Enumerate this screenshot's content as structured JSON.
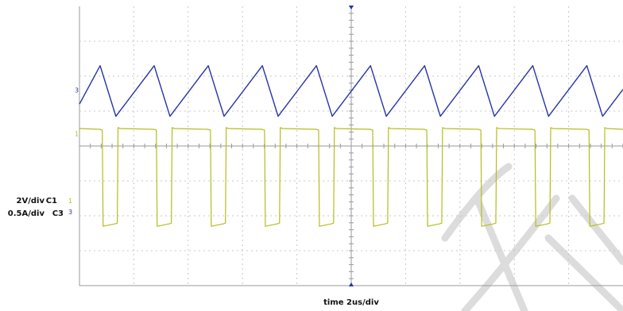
{
  "chart_data": {
    "type": "line",
    "instrument": "oscilloscope",
    "grid": "on",
    "divisions": {
      "horizontal": 10,
      "vertical": 8
    },
    "time_label": "time  2us/div",
    "channel_labels": [
      {
        "id": "C1",
        "text": "2V/div",
        "color": "#b5bd1c"
      },
      {
        "id": "C3",
        "text": "0.5A/div",
        "color": "#2733a8"
      }
    ],
    "series": [
      {
        "id": "C3",
        "color": "#2733a8",
        "shape": "sawtooth",
        "ref_div": 5.6,
        "min_div": 4.85,
        "max_div": 6.3,
        "period_div": 0.995,
        "first_peak_div": 0.38,
        "fall_div": 0.29,
        "start_div": 0.0,
        "start_level_div": 5.2
      },
      {
        "id": "C1",
        "color": "#b5bd1c",
        "shape": "square",
        "ref_div": 4.35,
        "high_div": 4.5,
        "low_div": 1.7,
        "period_div": 0.995,
        "first_fall_div": 0.42,
        "low_width_div": 0.29
      }
    ]
  },
  "watermark": {
    "color": "#dcdcdc"
  }
}
